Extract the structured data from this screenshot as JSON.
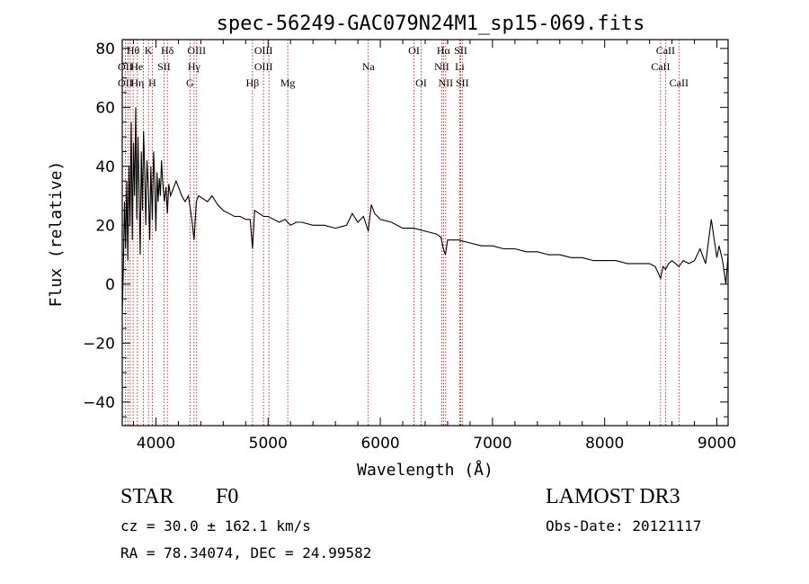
{
  "chart_data": {
    "type": "line",
    "title": "spec-56249-GAC079N24M1_sp15-069.fits",
    "xlabel": "Wavelength (Å)",
    "ylabel": "Flux (relative)",
    "xlim": [
      3700,
      9100
    ],
    "ylim": [
      -48,
      83
    ],
    "x_ticks": [
      4000,
      5000,
      6000,
      7000,
      8000,
      9000
    ],
    "y_ticks": [
      -40,
      -20,
      0,
      20,
      40,
      60,
      80
    ],
    "series": [
      {
        "name": "spectrum",
        "x": [
          3700,
          3710,
          3720,
          3730,
          3740,
          3750,
          3760,
          3770,
          3780,
          3790,
          3800,
          3810,
          3820,
          3830,
          3840,
          3850,
          3860,
          3870,
          3880,
          3890,
          3900,
          3910,
          3920,
          3933,
          3945,
          3955,
          3968,
          3980,
          3990,
          4000,
          4010,
          4020,
          4030,
          4040,
          4050,
          4060,
          4075,
          4090,
          4102,
          4115,
          4130,
          4150,
          4180,
          4200,
          4230,
          4260,
          4290,
          4320,
          4340,
          4360,
          4380,
          4420,
          4460,
          4500,
          4550,
          4600,
          4650,
          4700,
          4750,
          4800,
          4840,
          4861,
          4880,
          4920,
          4960,
          5000,
          5050,
          5100,
          5150,
          5200,
          5250,
          5300,
          5400,
          5500,
          5600,
          5700,
          5750,
          5800,
          5850,
          5893,
          5920,
          5950,
          6000,
          6100,
          6200,
          6300,
          6400,
          6500,
          6540,
          6563,
          6580,
          6600,
          6700,
          6800,
          6900,
          7000,
          7100,
          7200,
          7300,
          7400,
          7500,
          7600,
          7700,
          7800,
          7900,
          8000,
          8100,
          8200,
          8300,
          8400,
          8450,
          8498,
          8520,
          8542,
          8570,
          8600,
          8662,
          8700,
          8750,
          8800,
          8850,
          8900,
          8950,
          9000,
          9020,
          9050,
          9080,
          9100
        ],
        "values": [
          -10,
          5,
          28,
          12,
          35,
          8,
          40,
          20,
          55,
          15,
          48,
          30,
          60,
          22,
          50,
          32,
          10,
          45,
          25,
          52,
          38,
          20,
          42,
          32,
          15,
          40,
          22,
          45,
          35,
          18,
          38,
          28,
          36,
          30,
          42,
          35,
          28,
          33,
          24,
          34,
          30,
          32,
          35,
          33,
          30,
          28,
          30,
          22,
          15,
          28,
          30,
          29,
          28,
          30,
          27,
          25,
          24,
          23,
          23,
          22,
          22,
          12,
          25,
          24,
          23,
          23,
          22,
          21,
          22,
          20,
          21,
          21,
          20,
          20,
          19,
          20,
          24,
          21,
          23,
          18,
          27,
          24,
          22,
          21,
          19,
          19,
          18,
          17,
          16,
          12,
          10,
          15,
          15,
          14,
          13,
          13,
          12,
          12,
          11,
          11,
          10,
          10,
          9,
          9,
          8,
          8,
          8,
          7,
          7,
          7,
          6,
          2,
          6,
          5,
          7,
          8,
          6,
          8,
          7,
          8,
          12,
          7,
          22,
          9,
          13,
          8,
          0,
          10
        ]
      }
    ],
    "line_labels": [
      {
        "text": "Hθ",
        "x": 3797,
        "row": 0
      },
      {
        "text": "K",
        "x": 3934,
        "row": 0
      },
      {
        "text": "Hδ",
        "x": 4102,
        "row": 0
      },
      {
        "text": "OIII",
        "x": 4363,
        "row": 0
      },
      {
        "text": "OIII",
        "x": 4959,
        "row": 0
      },
      {
        "text": "OI",
        "x": 6300,
        "row": 0
      },
      {
        "text": "Hα",
        "x": 6563,
        "row": 0
      },
      {
        "text": "SII",
        "x": 6717,
        "row": 0
      },
      {
        "text": "CaII",
        "x": 8542,
        "row": 0
      },
      {
        "text": "OII",
        "x": 3727,
        "row": 1
      },
      {
        "text": "He",
        "x": 3830,
        "row": 1
      },
      {
        "text": "SII",
        "x": 4072,
        "row": 1
      },
      {
        "text": "Hγ",
        "x": 4340,
        "row": 1
      },
      {
        "text": "OIII",
        "x": 4959,
        "row": 1
      },
      {
        "text": "Na",
        "x": 5893,
        "row": 1
      },
      {
        "text": "NII",
        "x": 6548,
        "row": 1
      },
      {
        "text": "Li",
        "x": 6708,
        "row": 1
      },
      {
        "text": "CaII",
        "x": 8498,
        "row": 1
      },
      {
        "text": "OII",
        "x": 3727,
        "row": 2
      },
      {
        "text": "Hη",
        "x": 3835,
        "row": 2
      },
      {
        "text": "H",
        "x": 3968,
        "row": 2
      },
      {
        "text": "G",
        "x": 4304,
        "row": 2
      },
      {
        "text": "Hβ",
        "x": 4861,
        "row": 2
      },
      {
        "text": "Mg",
        "x": 5175,
        "row": 2
      },
      {
        "text": "OI",
        "x": 6364,
        "row": 2
      },
      {
        "text": "NII",
        "x": 6583,
        "row": 2
      },
      {
        "text": "SII",
        "x": 6731,
        "row": 2
      },
      {
        "text": "CaII",
        "x": 8662,
        "row": 2
      }
    ],
    "reference_lines": [
      3727,
      3750,
      3771,
      3797,
      3835,
      3889,
      3934,
      3968,
      4072,
      4102,
      4304,
      4340,
      4363,
      4861,
      4959,
      5007,
      5175,
      5893,
      6300,
      6364,
      6548,
      6563,
      6583,
      6708,
      6717,
      6731,
      8498,
      8542,
      8662
    ],
    "reference_line_color": "#cc0000"
  },
  "info": {
    "obj_class": "STAR",
    "subclass": "F0",
    "survey": "LAMOST DR3",
    "cz": "cz = 30.0 ± 162.1 km/s",
    "obs_date": "Obs-Date: 20121117",
    "coords": "RA =  78.34074, DEC =  24.99582"
  }
}
